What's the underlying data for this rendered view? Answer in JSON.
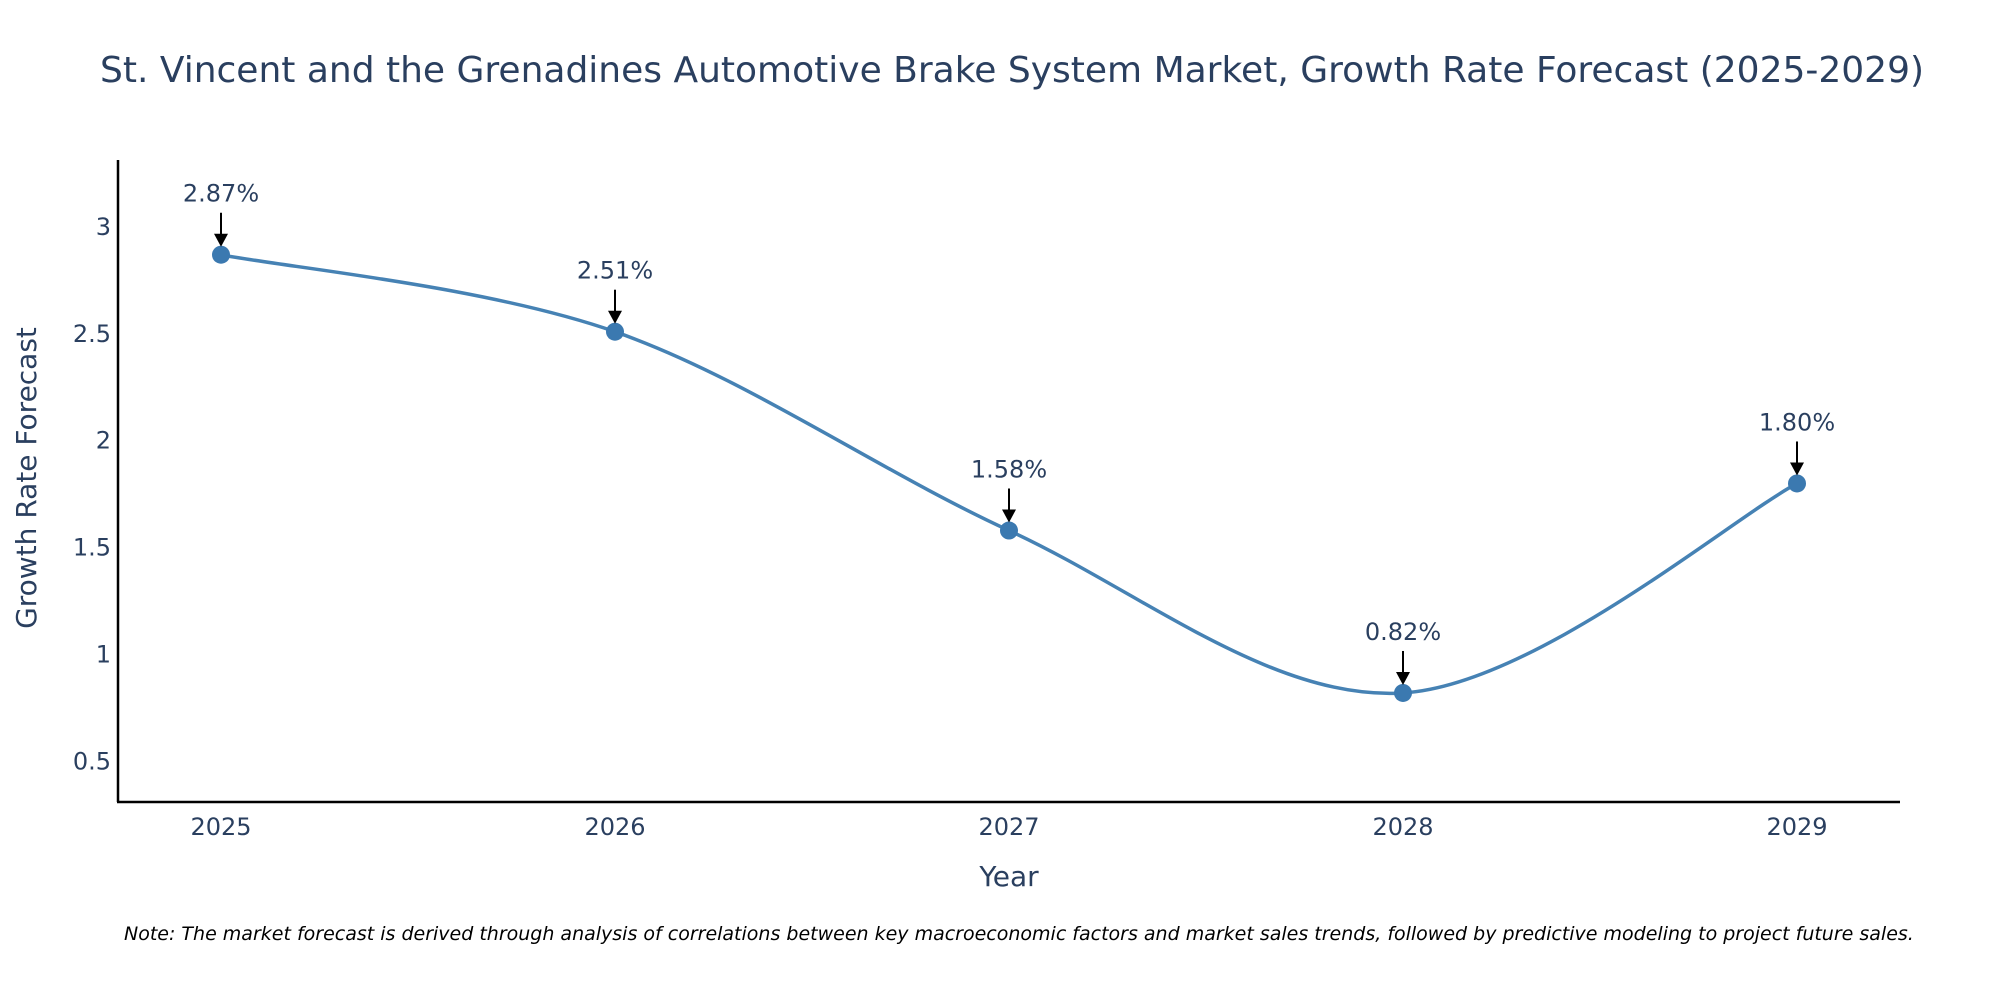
{
  "chart_data": {
    "type": "line",
    "title": "St. Vincent and the Grenadines Automotive Brake System Market, Growth Rate Forecast (2025-2029)",
    "xlabel": "Year",
    "ylabel": "Growth Rate Forecast",
    "categories": [
      "2025",
      "2026",
      "2027",
      "2028",
      "2029"
    ],
    "series": [
      {
        "name": "Growth Rate Forecast",
        "values": [
          2.87,
          2.51,
          1.58,
          0.82,
          1.8
        ],
        "color": "#4682b4",
        "line_shape": "spline"
      }
    ],
    "annotations": [
      "2.87%",
      "2.51%",
      "1.58%",
      "0.82%",
      "1.80%"
    ],
    "yticks": [
      "0.5",
      "1",
      "1.5",
      "2",
      "2.5",
      "3"
    ],
    "ytick_values": [
      0.5,
      1,
      1.5,
      2,
      2.5,
      3
    ],
    "ylim": [
      0.31,
      3.36
    ],
    "grid": false,
    "note": "Note: The market forecast is derived through analysis of correlations between key macroeconomic factors and market sales trends, followed by predictive modeling to project future sales."
  },
  "colors": {
    "line": "#4682b4",
    "marker": "#3b79b0",
    "text": "#2a3f5f",
    "axis": "#000000"
  }
}
